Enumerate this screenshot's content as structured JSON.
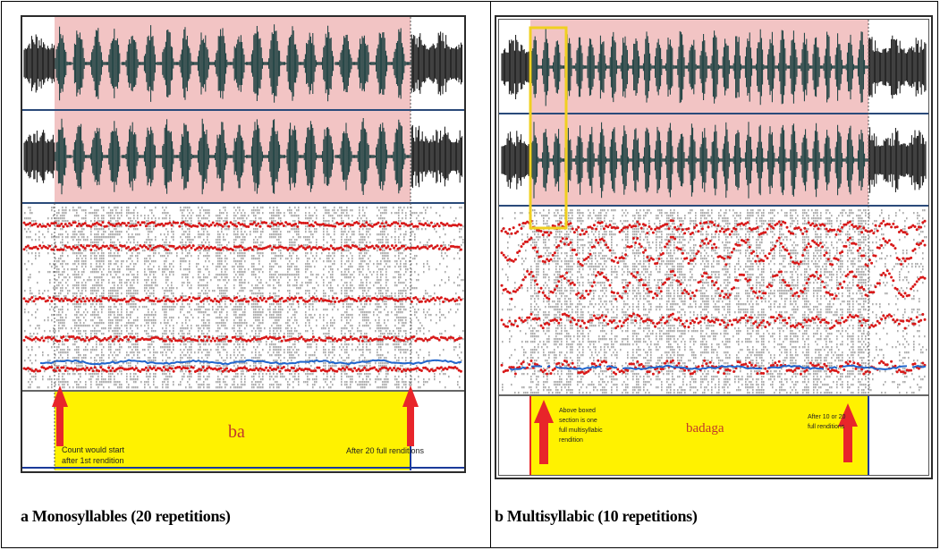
{
  "panels": [
    {
      "id": "a",
      "caption": "a Monosyllables (20 repetitions)",
      "syllable_label": "ba",
      "annotation_start": [
        "Count would start",
        "after 1st rendition"
      ],
      "annotation_end": "After 20 full renditions",
      "repetitions": 20
    },
    {
      "id": "b",
      "caption": "b Multisyllabic (10 repetitions)",
      "syllable_label": "badaga",
      "annotation_start": [
        "Above boxed",
        "section is one",
        "full multisyllabic",
        "rendition"
      ],
      "annotation_end": [
        "After 10 or 20",
        "full renditions"
      ],
      "repetitions": 10
    }
  ],
  "colors": {
    "waveform": "#123a3a",
    "waveform_outside": "#111111",
    "highlight": "#f2c4c4",
    "formant": "#d81818",
    "pitch": "#2266cc",
    "textgrid_fill": "#fff200",
    "arrow": "#e8252a",
    "syllable_text": "#c0392b",
    "select_box": "#f0d020"
  }
}
